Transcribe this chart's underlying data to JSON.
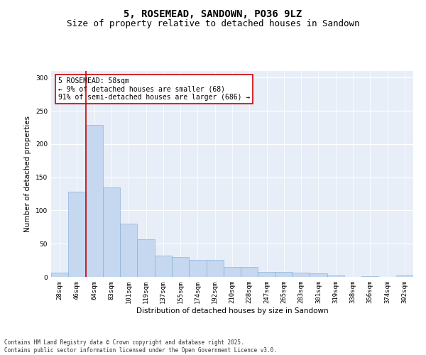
{
  "title1": "5, ROSEMEAD, SANDOWN, PO36 9LZ",
  "title2": "Size of property relative to detached houses in Sandown",
  "xlabel": "Distribution of detached houses by size in Sandown",
  "ylabel": "Number of detached properties",
  "categories": [
    "28sqm",
    "46sqm",
    "64sqm",
    "83sqm",
    "101sqm",
    "119sqm",
    "137sqm",
    "155sqm",
    "174sqm",
    "192sqm",
    "210sqm",
    "228sqm",
    "247sqm",
    "265sqm",
    "283sqm",
    "301sqm",
    "319sqm",
    "338sqm",
    "356sqm",
    "374sqm",
    "392sqm"
  ],
  "values": [
    6,
    128,
    229,
    135,
    80,
    57,
    32,
    30,
    26,
    26,
    15,
    15,
    7,
    7,
    6,
    5,
    2,
    0,
    1,
    0,
    2
  ],
  "bar_color": "#c5d8f0",
  "bar_edge_color": "#7aaad0",
  "vline_color": "#cc0000",
  "annotation_text": "5 ROSEMEAD: 58sqm\n← 9% of detached houses are smaller (68)\n91% of semi-detached houses are larger (686) →",
  "annotation_box_color": "#ffffff",
  "annotation_box_edge": "#cc0000",
  "ylim": [
    0,
    310
  ],
  "yticks": [
    0,
    50,
    100,
    150,
    200,
    250,
    300
  ],
  "background_color": "#e8eef8",
  "footer1": "Contains HM Land Registry data © Crown copyright and database right 2025.",
  "footer2": "Contains public sector information licensed under the Open Government Licence v3.0.",
  "title_fontsize": 10,
  "subtitle_fontsize": 9,
  "axis_label_fontsize": 7.5,
  "tick_fontsize": 6.5,
  "annotation_fontsize": 7,
  "footer_fontsize": 5.5
}
